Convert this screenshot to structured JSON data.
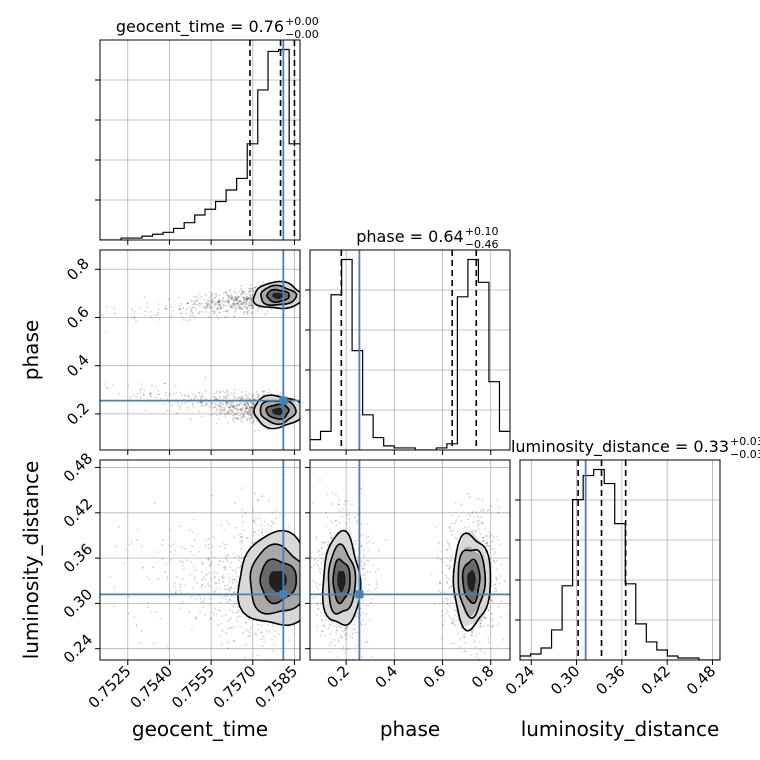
{
  "chart_data": {
    "type": "corner",
    "parameters": [
      "geocent_time",
      "phase",
      "luminosity_distance"
    ],
    "truth": {
      "geocent_time": 0.7581,
      "phase": 0.255,
      "luminosity_distance": 0.312
    },
    "truth_color": "#4682b4",
    "axes": {
      "geocent_time": {
        "range": [
          0.7515,
          0.7587
        ],
        "ticks": [
          0.7525,
          0.754,
          0.7555,
          0.757,
          0.7585
        ],
        "tick_labels": [
          "0.7525",
          "0.7540",
          "0.7555",
          "0.7570",
          "0.7585"
        ]
      },
      "phase": {
        "range": [
          0.05,
          0.88
        ],
        "ticks": [
          0.2,
          0.4,
          0.6,
          0.8
        ],
        "tick_labels": [
          "0.2",
          "0.4",
          "0.6",
          "0.8"
        ]
      },
      "luminosity_distance": {
        "range": [
          0.225,
          0.49
        ],
        "ticks": [
          0.24,
          0.3,
          0.36,
          0.42,
          0.48
        ],
        "tick_labels": [
          "0.24",
          "0.30",
          "0.36",
          "0.42",
          "0.48"
        ]
      }
    },
    "diagonal": [
      {
        "param": "geocent_time",
        "title_main": "geocent_time = 0.76",
        "title_sup": "+0.00",
        "title_sub": "−0.00",
        "quantiles": [
          0.7569,
          0.758,
          0.7585
        ],
        "bins": [
          0.7515,
          0.75188,
          0.75226,
          0.75263,
          0.75301,
          0.75339,
          0.75377,
          0.75415,
          0.75453,
          0.75491,
          0.75528,
          0.75566,
          0.75604,
          0.75642,
          0.7568,
          0.75718,
          0.75755,
          0.75793,
          0.75831,
          0.75869
        ],
        "counts": [
          0,
          0,
          1,
          1,
          2,
          3,
          4,
          6,
          9,
          13,
          16,
          20,
          26,
          32,
          50,
          78,
          98,
          99,
          50
        ]
      },
      {
        "param": "phase",
        "title_main": "phase = 0.64",
        "title_sup": "+0.10",
        "title_sub": "−0.46",
        "quantiles": [
          0.18,
          0.64,
          0.74
        ],
        "bins": [
          0.05,
          0.0937,
          0.1374,
          0.1811,
          0.2247,
          0.2684,
          0.3121,
          0.3558,
          0.3995,
          0.4432,
          0.4868,
          0.5305,
          0.5742,
          0.6179,
          0.6616,
          0.7053,
          0.7489,
          0.7926,
          0.8363,
          0.88
        ],
        "counts": [
          5,
          9,
          75,
          92,
          48,
          17,
          6,
          2,
          1,
          1,
          0,
          0,
          1,
          3,
          74,
          92,
          81,
          33,
          9
        ]
      },
      {
        "param": "luminosity_distance",
        "title_main": "luminosity_distance = 0.33",
        "title_sup": "+0.03",
        "title_sub": "−0.03",
        "quantiles": [
          0.302,
          0.333,
          0.365
        ],
        "bins": [
          0.225,
          0.2389,
          0.2529,
          0.2668,
          0.2808,
          0.2947,
          0.3087,
          0.3226,
          0.3366,
          0.3505,
          0.3645,
          0.3784,
          0.3924,
          0.4063,
          0.4203,
          0.4342,
          0.4482,
          0.4621,
          0.4761,
          0.49
        ],
        "counts": [
          2,
          3,
          6,
          15,
          37,
          80,
          92,
          95,
          88,
          68,
          38,
          18,
          9,
          5,
          2,
          1,
          1,
          0,
          0
        ]
      }
    ],
    "pairs": [
      {
        "x": "geocent_time",
        "y": "phase",
        "modes": [
          {
            "x": 0.7579,
            "y": 0.69,
            "sx": 0.0004,
            "sy": 0.025
          },
          {
            "x": 0.7579,
            "y": 0.21,
            "sx": 0.0004,
            "sy": 0.03
          }
        ]
      },
      {
        "x": "geocent_time",
        "y": "luminosity_distance",
        "modes": [
          {
            "x": 0.7579,
            "y": 0.33,
            "sx": 0.00065,
            "sy": 0.028
          }
        ]
      },
      {
        "x": "phase",
        "y": "luminosity_distance",
        "modes": [
          {
            "x": 0.18,
            "y": 0.33,
            "sx": 0.035,
            "sy": 0.028
          },
          {
            "x": 0.72,
            "y": 0.33,
            "sx": 0.035,
            "sy": 0.028
          }
        ]
      }
    ],
    "grid": true
  }
}
